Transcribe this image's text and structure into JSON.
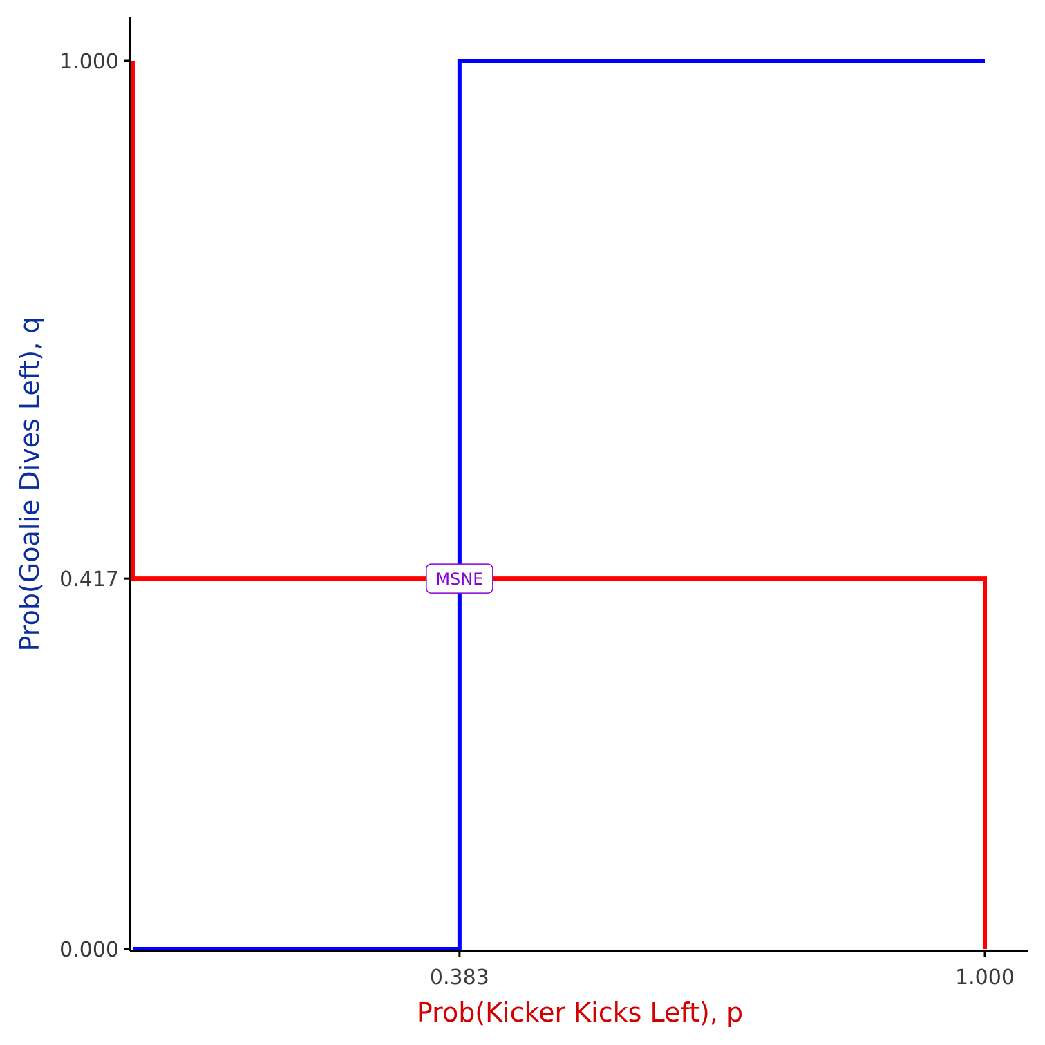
{
  "chart_data": {
    "type": "line",
    "xlabel": "Prob(Kicker Kicks Left), p",
    "ylabel": "Prob(Goalie Dives Left), q",
    "xlim": [
      0,
      1
    ],
    "ylim": [
      0,
      1
    ],
    "x_ticks": [
      0.383,
      1.0
    ],
    "x_tick_labels": [
      "0.383",
      "1.000"
    ],
    "y_ticks": [
      0.0,
      0.417,
      1.0
    ],
    "y_tick_labels": [
      "0.000",
      "0.417",
      "1.000"
    ],
    "grid": false,
    "series": [
      {
        "color": "#ff0000",
        "points": [
          [
            0,
            1
          ],
          [
            0,
            0.417
          ],
          [
            1,
            0.417
          ],
          [
            1,
            0
          ]
        ]
      },
      {
        "color": "#0000ff",
        "points": [
          [
            0,
            0
          ],
          [
            0.383,
            0
          ],
          [
            0.383,
            1
          ],
          [
            1,
            1
          ]
        ]
      }
    ],
    "annotations": [
      {
        "text": "MSNE",
        "x": 0.383,
        "y": 0.417,
        "color": "#8b00d6"
      }
    ],
    "colors": {
      "xlabel": "#d40000",
      "ylabel": "#0a2e9c",
      "axis": "#000000",
      "tick_label": "#3a3a3a"
    }
  }
}
